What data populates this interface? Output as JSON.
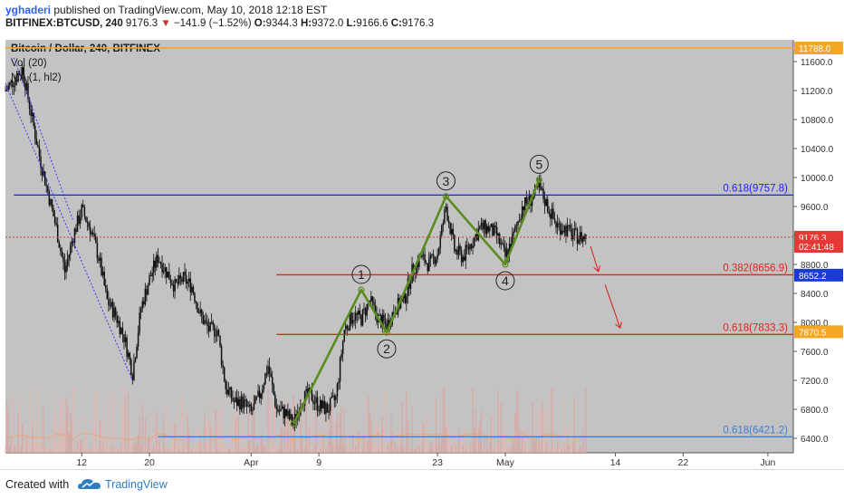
{
  "header": {
    "username": "yghaderi",
    "published_text": "published on TradingView.com, May 10, 2018 12:18 EST",
    "symbol": "BITFINEX:BTCUSD, 240",
    "last_price": "9176.3",
    "change_arrow": "▼",
    "change": "−141.9 (−1.52%)",
    "o_label": "O:",
    "o_value": "9344.3",
    "h_label": "H:",
    "h_value": "9372.0",
    "l_label": "L:",
    "l_value": "9166.6",
    "c_label": "C:",
    "c_value": "9176.3"
  },
  "legend": {
    "title": "Bitcoin / Dollar, 240, BITFINEX",
    "volume": "Vol (20)",
    "ma": "MA (1, hl2)"
  },
  "colors": {
    "background": "#c3c3c3",
    "up_candle": "#111111",
    "down_candle": "#111111",
    "wave_line": "#5a8c1e",
    "blue_line": "#1c1cff",
    "red_line": "#e0241c",
    "orange_line": "#f5a623",
    "last_price_color": "#e53935",
    "blue_badge": "#1a3bd8"
  },
  "chart_data": {
    "type": "candlestick",
    "y_range": [
      6200,
      11900
    ],
    "y_ticks": [
      "11600.0",
      "11200.0",
      "10800.0",
      "10400.0",
      "10000.0",
      "9600.0",
      "9200.0",
      "8800.0",
      "8400.0",
      "8000.0",
      "7600.0",
      "7200.0",
      "6800.0",
      "6400.0"
    ],
    "x_ticks": [
      {
        "label": "12",
        "date": "2018-03-12"
      },
      {
        "label": "20",
        "date": "2018-03-20"
      },
      {
        "label": "Apr",
        "date": "2018-04-01"
      },
      {
        "label": "9",
        "date": "2018-04-09"
      },
      {
        "label": "23",
        "date": "2018-04-23"
      },
      {
        "label": "May",
        "date": "2018-05-01"
      },
      {
        "label": "14",
        "date": "2018-05-14"
      },
      {
        "label": "22",
        "date": "2018-05-22"
      },
      {
        "label": "Jun",
        "date": "2018-06-01"
      }
    ],
    "price_path": [
      [
        "2018-03-03",
        11200
      ],
      [
        "2018-03-05",
        11500
      ],
      [
        "2018-03-06",
        10900
      ],
      [
        "2018-03-07",
        10300
      ],
      [
        "2018-03-08",
        9800
      ],
      [
        "2018-03-09",
        9300
      ],
      [
        "2018-03-10",
        8700
      ],
      [
        "2018-03-11",
        9200
      ],
      [
        "2018-03-12",
        9550
      ],
      [
        "2018-03-13",
        9300
      ],
      [
        "2018-03-14",
        8900
      ],
      [
        "2018-03-15",
        8300
      ],
      [
        "2018-03-16",
        8100
      ],
      [
        "2018-03-17",
        7800
      ],
      [
        "2018-03-18",
        7300
      ],
      [
        "2018-03-19",
        8200
      ],
      [
        "2018-03-20",
        8600
      ],
      [
        "2018-03-21",
        8900
      ],
      [
        "2018-03-22",
        8700
      ],
      [
        "2018-03-23",
        8500
      ],
      [
        "2018-03-24",
        8600
      ],
      [
        "2018-03-25",
        8500
      ],
      [
        "2018-03-26",
        8100
      ],
      [
        "2018-03-27",
        7900
      ],
      [
        "2018-03-28",
        7900
      ],
      [
        "2018-03-29",
        7100
      ],
      [
        "2018-03-30",
        6900
      ],
      [
        "2018-03-31",
        6900
      ],
      [
        "2018-04-01",
        6750
      ],
      [
        "2018-04-02",
        7000
      ],
      [
        "2018-04-03",
        7400
      ],
      [
        "2018-04-04",
        6800
      ],
      [
        "2018-04-05",
        6750
      ],
      [
        "2018-04-06",
        6600
      ],
      [
        "2018-04-07",
        6950
      ],
      [
        "2018-04-08",
        7000
      ],
      [
        "2018-04-09",
        6850
      ],
      [
        "2018-04-10",
        6800
      ],
      [
        "2018-04-11",
        6950
      ],
      [
        "2018-04-12",
        7900
      ],
      [
        "2018-04-13",
        8100
      ],
      [
        "2018-04-14",
        8050
      ],
      [
        "2018-04-15",
        8300
      ],
      [
        "2018-04-16",
        8050
      ],
      [
        "2018-04-17",
        7950
      ],
      [
        "2018-04-18",
        8200
      ],
      [
        "2018-04-19",
        8300
      ],
      [
        "2018-04-20",
        8700
      ],
      [
        "2018-04-21",
        8900
      ],
      [
        "2018-04-22",
        8800
      ],
      [
        "2018-04-23",
        8950
      ],
      [
        "2018-04-24",
        9600
      ],
      [
        "2018-04-25",
        9000
      ],
      [
        "2018-04-26",
        8900
      ],
      [
        "2018-04-27",
        9100
      ],
      [
        "2018-04-28",
        9300
      ],
      [
        "2018-04-29",
        9300
      ],
      [
        "2018-04-30",
        9200
      ],
      [
        "2018-05-01",
        8900
      ],
      [
        "2018-05-02",
        9200
      ],
      [
        "2018-05-03",
        9600
      ],
      [
        "2018-05-04",
        9700
      ],
      [
        "2018-05-05",
        9850
      ],
      [
        "2018-05-06",
        9600
      ],
      [
        "2018-05-07",
        9350
      ],
      [
        "2018-05-08",
        9300
      ],
      [
        "2018-05-09",
        9200
      ],
      [
        "2018-05-10",
        9176.3
      ]
    ],
    "wave_points": [
      {
        "label": "",
        "date": "2018-04-06",
        "price": 6600
      },
      {
        "label": "1",
        "date": "2018-04-14",
        "price": 8450
      },
      {
        "label": "2",
        "date": "2018-04-17",
        "price": 7860
      },
      {
        "label": "3",
        "date": "2018-04-24",
        "price": 9740
      },
      {
        "label": "4",
        "date": "2018-05-01",
        "price": 8800
      },
      {
        "label": "5",
        "date": "2018-05-05",
        "price": 9970
      }
    ],
    "levels": [
      {
        "label": "0.618(9757.8)",
        "price": 9757.8,
        "color": "#1c1cff"
      },
      {
        "label": "0.382(8656.9)",
        "price": 8656.9,
        "color": "#e0241c"
      },
      {
        "label": "0.618(7833.3)",
        "price": 7833.3,
        "color": "#e0241c"
      },
      {
        "label": "0.618(6421.2)",
        "price": 6421.2,
        "color": "#3a7fd6"
      }
    ],
    "price_badges": [
      {
        "label": "11788.0",
        "price": 11788.0,
        "color": "#f5a623"
      },
      {
        "label": "9176.3",
        "price": 9176.3,
        "color": "#e53935"
      },
      {
        "label": "02:41:48",
        "price": 9050,
        "color": "#e53935"
      },
      {
        "label": "8652.2",
        "price": 8652.2,
        "color": "#1a3bd8"
      },
      {
        "label": "7870.5",
        "price": 7870.5,
        "color": "#f5a623"
      }
    ],
    "horizontal_lines": [
      {
        "price": 11788.0,
        "color": "#f5a623"
      },
      {
        "price": 9176.3,
        "color": "#e53935",
        "dashed": true
      }
    ]
  },
  "footer": {
    "created_with": "Created with",
    "brand": "TradingView"
  }
}
